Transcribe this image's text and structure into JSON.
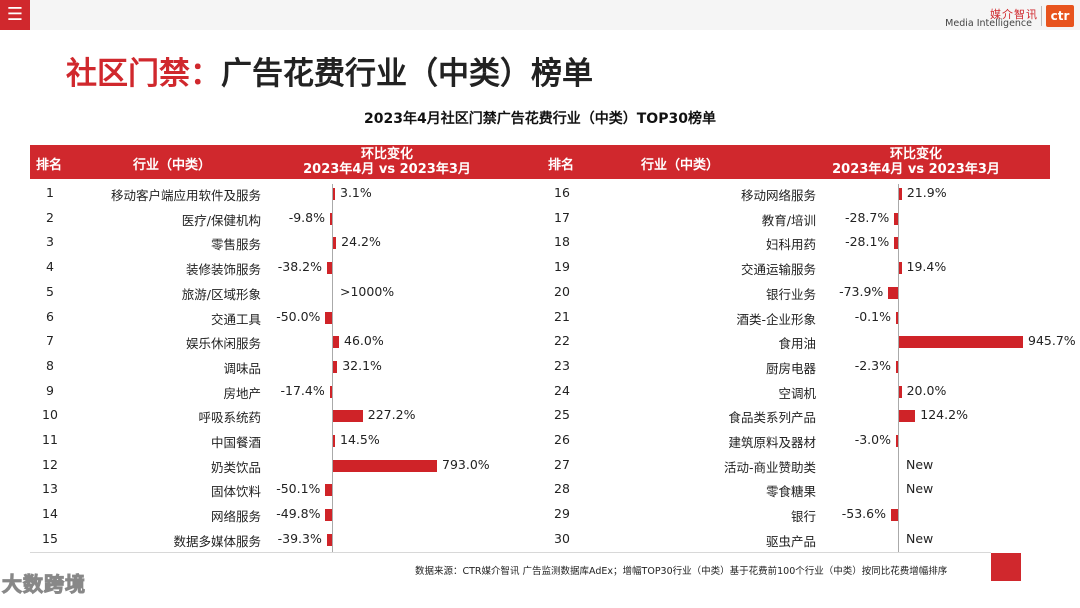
{
  "header": {
    "menu_icon": "hamburger-icon",
    "logo_cn": "媒介智讯",
    "logo_en": "Media Intelligence",
    "logo_mark": "ctr"
  },
  "page_title_red": "社区门禁：",
  "page_title_rest": "广告花费行业（中类）榜单",
  "chart_data": {
    "type": "table",
    "title": "2023年4月社区门禁广告花费行业（中类）TOP30榜单",
    "columns": {
      "rank": "排名",
      "industry": "行业（中类）",
      "change_l1": "环比变化",
      "change_l2": "2023年4月 vs 2023年3月"
    },
    "rows": [
      {
        "rank": "1",
        "industry": "移动客户端应用软件及服务",
        "label": "3.1%",
        "value": 3.1
      },
      {
        "rank": "2",
        "industry": "医疗/保健机构",
        "label": "-9.8%",
        "value": -9.8
      },
      {
        "rank": "3",
        "industry": "零售服务",
        "label": "24.2%",
        "value": 24.2
      },
      {
        "rank": "4",
        "industry": "装修装饰服务",
        "label": "-38.2%",
        "value": -38.2
      },
      {
        "rank": "5",
        "industry": "旅游/区域形象",
        "label": ">1000%",
        "value": null
      },
      {
        "rank": "6",
        "industry": "交通工具",
        "label": "-50.0%",
        "value": -50.0
      },
      {
        "rank": "7",
        "industry": "娱乐休闲服务",
        "label": "46.0%",
        "value": 46.0
      },
      {
        "rank": "8",
        "industry": "调味品",
        "label": "32.1%",
        "value": 32.1
      },
      {
        "rank": "9",
        "industry": "房地产",
        "label": "-17.4%",
        "value": -17.4
      },
      {
        "rank": "10",
        "industry": "呼吸系统药",
        "label": "227.2%",
        "value": 227.2
      },
      {
        "rank": "11",
        "industry": "中国餐酒",
        "label": "14.5%",
        "value": 14.5
      },
      {
        "rank": "12",
        "industry": "奶类饮品",
        "label": "793.0%",
        "value": 793.0
      },
      {
        "rank": "13",
        "industry": "固体饮料",
        "label": "-50.1%",
        "value": -50.1
      },
      {
        "rank": "14",
        "industry": "网络服务",
        "label": "-49.8%",
        "value": -49.8
      },
      {
        "rank": "15",
        "industry": "数据多媒体服务",
        "label": "-39.3%",
        "value": -39.3
      },
      {
        "rank": "16",
        "industry": "移动网络服务",
        "label": "21.9%",
        "value": 21.9
      },
      {
        "rank": "17",
        "industry": "教育/培训",
        "label": "-28.7%",
        "value": -28.7
      },
      {
        "rank": "18",
        "industry": "妇科用药",
        "label": "-28.1%",
        "value": -28.1
      },
      {
        "rank": "19",
        "industry": "交通运输服务",
        "label": "19.4%",
        "value": 19.4
      },
      {
        "rank": "20",
        "industry": "银行业务",
        "label": "-73.9%",
        "value": -73.9
      },
      {
        "rank": "21",
        "industry": "酒类-企业形象",
        "label": "-0.1%",
        "value": -0.1
      },
      {
        "rank": "22",
        "industry": "食用油",
        "label": "945.7%",
        "value": 945.7
      },
      {
        "rank": "23",
        "industry": "厨房电器",
        "label": "-2.3%",
        "value": -2.3
      },
      {
        "rank": "24",
        "industry": "空调机",
        "label": "20.0%",
        "value": 20.0
      },
      {
        "rank": "25",
        "industry": "食品类系列产品",
        "label": "124.2%",
        "value": 124.2
      },
      {
        "rank": "26",
        "industry": "建筑原料及器材",
        "label": "-3.0%",
        "value": -3.0
      },
      {
        "rank": "27",
        "industry": "活动-商业赞助类",
        "label": "New",
        "value": null
      },
      {
        "rank": "28",
        "industry": "零食糖果",
        "label": "New",
        "value": null
      },
      {
        "rank": "29",
        "industry": "银行",
        "label": "-53.6%",
        "value": -53.6
      },
      {
        "rank": "30",
        "industry": "驱虫产品",
        "label": "New",
        "value": null
      }
    ]
  },
  "footer_note": "数据来源：CTR媒介智讯 广告监测数据库AdEx；增幅TOP30行业（中类）基于花费前100个行业（中类）按同比花费增幅排序",
  "watermark": "大数跨境"
}
